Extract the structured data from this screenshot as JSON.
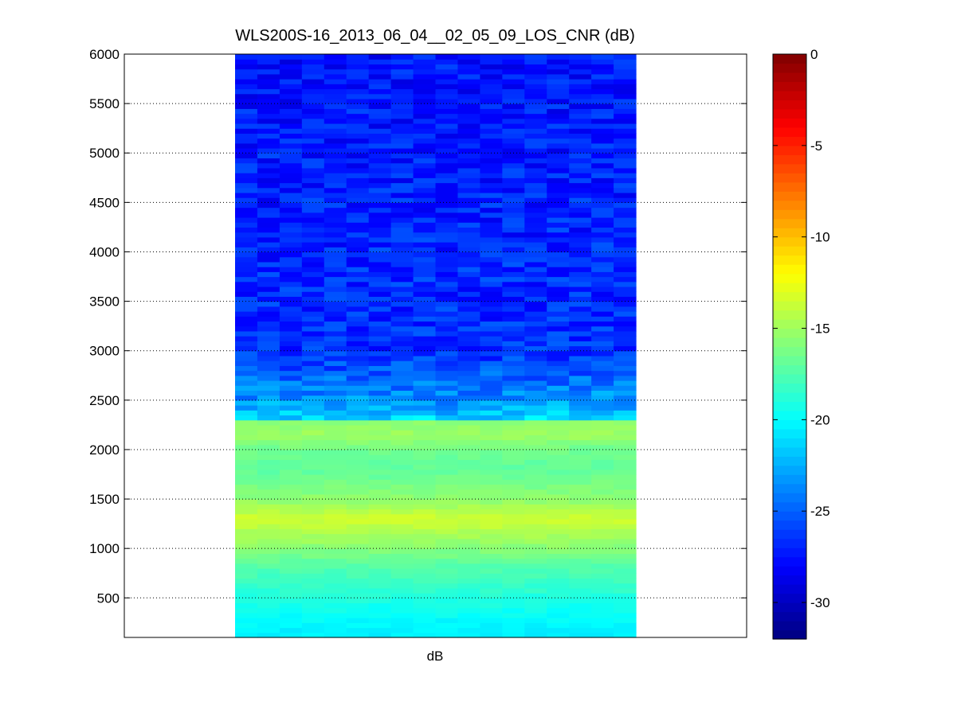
{
  "chart_data": {
    "type": "heatmap",
    "title": "WLS200S-16_2013_06_04__02_05_09_LOS_CNR (dB)",
    "xlabel": "dB",
    "ylabel": "",
    "ylim": [
      100,
      6000
    ],
    "y_ticks": [
      500,
      1000,
      1500,
      2000,
      2500,
      3000,
      3500,
      4000,
      4500,
      5000,
      5500,
      6000
    ],
    "grid": "horizontal dotted",
    "colormap": "jet",
    "colorbar": {
      "min": -32,
      "max": 0,
      "ticks": [
        0,
        -5,
        -10,
        -15,
        -20,
        -25,
        -30
      ]
    },
    "series": [
      {
        "columns": 18,
        "profile": [
          {
            "range": 2250,
            "cnr": -20
          },
          {
            "range": 2400,
            "cnr": -22.5
          },
          {
            "range": 2600,
            "cnr": -24
          },
          {
            "range": 3000,
            "cnr": -26.5
          },
          {
            "range": 6000,
            "cnr": -27.5
          }
        ],
        "near_range_cnr": [
          {
            "range": 150,
            "cnr": -20.5
          },
          {
            "range": 400,
            "cnr": -19.5
          },
          {
            "range": 800,
            "cnr": -17.5
          },
          {
            "range": 1100,
            "cnr": -15
          },
          {
            "range": 1300,
            "cnr": -13.5
          },
          {
            "range": 1500,
            "cnr": -15.5
          },
          {
            "range": 1800,
            "cnr": -17
          },
          {
            "range": 2000,
            "cnr": -16.5
          },
          {
            "range": 2150,
            "cnr": -15
          },
          {
            "range": 2250,
            "cnr": -15.5
          }
        ]
      }
    ]
  }
}
